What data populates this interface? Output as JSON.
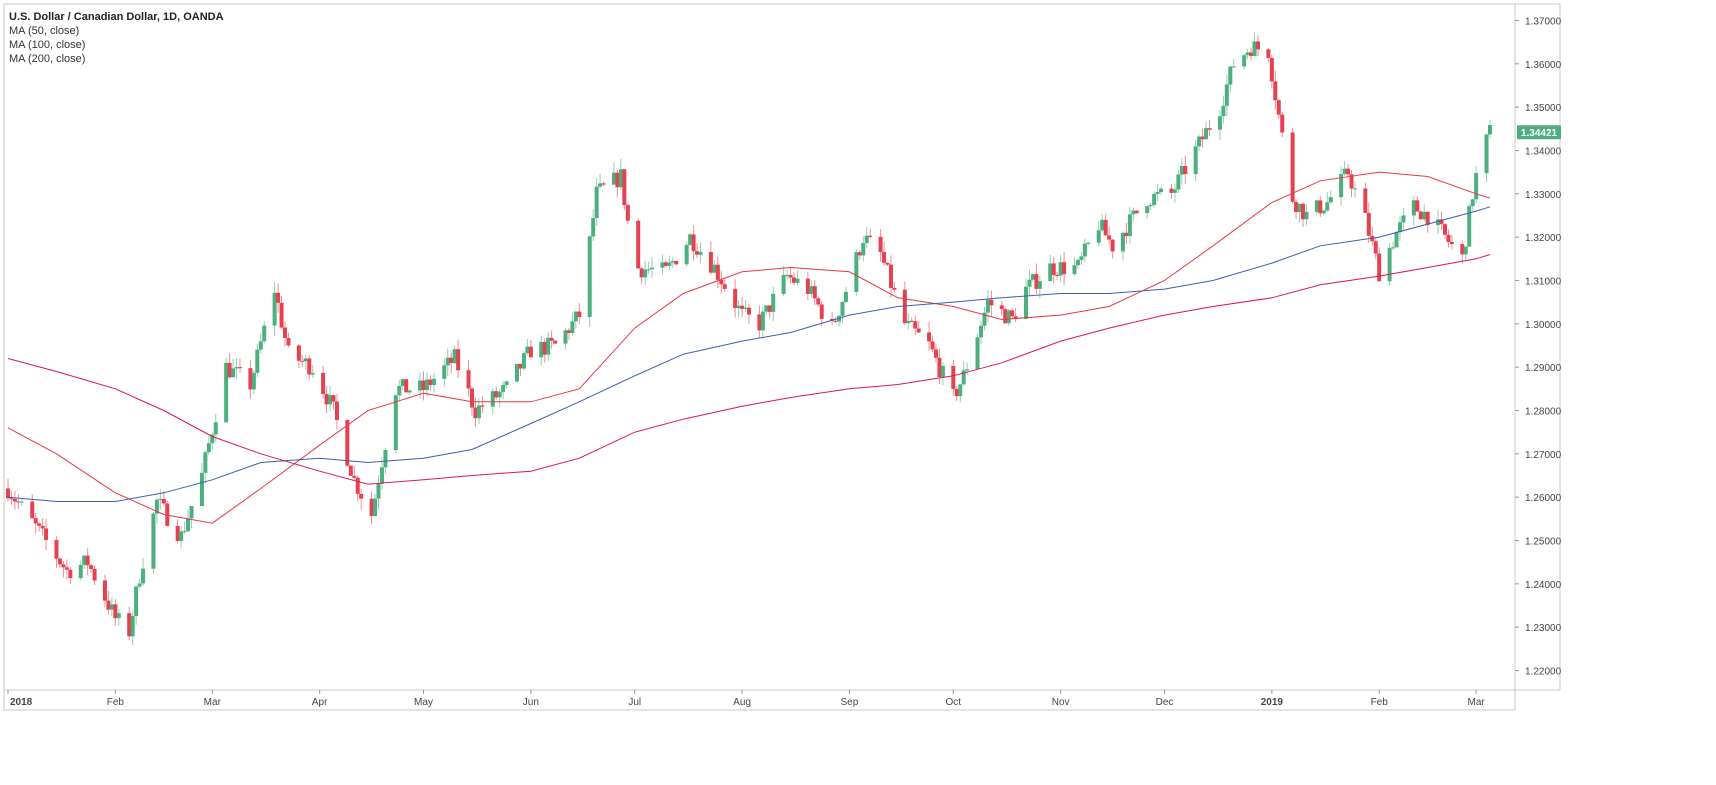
{
  "chart_data": {
    "type": "candlestick",
    "title": "U.S. Dollar / Canadian Dollar, 1D, OANDA",
    "indicators": [
      {
        "name": "MA (50, close)",
        "color": "#e53947"
      },
      {
        "name": "MA (100, close)",
        "color": "#3d5fae"
      },
      {
        "name": "MA (200, close)",
        "color": "#e0164a"
      }
    ],
    "colors": {
      "up": "#4caf7d",
      "down": "#e5414f",
      "last_price_bg": "#4caf7d"
    },
    "x_ticks": [
      "2018",
      "Feb",
      "Mar",
      "Apr",
      "May",
      "Jun",
      "Jul",
      "Aug",
      "Sep",
      "Oct",
      "Nov",
      "Dec",
      "2019",
      "Feb",
      "Mar"
    ],
    "x_tick_bold": [
      true,
      false,
      false,
      false,
      false,
      false,
      false,
      false,
      false,
      false,
      false,
      false,
      true,
      false,
      false
    ],
    "y_ticks": [
      "1.22000",
      "1.23000",
      "1.24000",
      "1.25000",
      "1.26000",
      "1.27000",
      "1.28000",
      "1.29000",
      "1.30000",
      "1.31000",
      "1.32000",
      "1.33000",
      "1.34000",
      "1.35000",
      "1.36000",
      "1.37000"
    ],
    "ylim": [
      1.2155,
      1.3738
    ],
    "last_price": "1.34421",
    "date_range": [
      "2018-01-01",
      "2019-03-05"
    ],
    "close_path": [
      [
        "2018-01-01",
        1.262
      ],
      [
        "2018-01-10",
        1.252
      ],
      [
        "2018-01-18",
        1.243
      ],
      [
        "2018-01-24",
        1.245
      ],
      [
        "2018-02-01",
        1.232
      ],
      [
        "2018-02-05",
        1.229
      ],
      [
        "2018-02-08",
        1.242
      ],
      [
        "2018-02-13",
        1.259
      ],
      [
        "2018-02-20",
        1.251
      ],
      [
        "2018-02-26",
        1.265
      ],
      [
        "2018-03-05",
        1.29
      ],
      [
        "2018-03-12",
        1.286
      ],
      [
        "2018-03-19",
        1.308
      ],
      [
        "2018-03-23",
        1.293
      ],
      [
        "2018-03-30",
        1.29
      ],
      [
        "2018-04-05",
        1.28
      ],
      [
        "2018-04-11",
        1.264
      ],
      [
        "2018-04-16",
        1.256
      ],
      [
        "2018-04-23",
        1.285
      ],
      [
        "2018-05-01",
        1.285
      ],
      [
        "2018-05-10",
        1.292
      ],
      [
        "2018-05-16",
        1.28
      ],
      [
        "2018-05-25",
        1.285
      ],
      [
        "2018-06-01",
        1.294
      ],
      [
        "2018-06-08",
        1.295
      ],
      [
        "2018-06-15",
        1.302
      ],
      [
        "2018-06-20",
        1.33
      ],
      [
        "2018-06-27",
        1.334
      ],
      [
        "2018-07-01",
        1.313
      ],
      [
        "2018-07-10",
        1.312
      ],
      [
        "2018-07-17",
        1.32
      ],
      [
        "2018-07-24",
        1.313
      ],
      [
        "2018-08-01",
        1.302
      ],
      [
        "2018-08-06",
        1.3
      ],
      [
        "2018-08-14",
        1.311
      ],
      [
        "2018-08-20",
        1.308
      ],
      [
        "2018-08-27",
        1.299
      ],
      [
        "2018-09-01",
        1.31
      ],
      [
        "2018-09-05",
        1.32
      ],
      [
        "2018-09-10",
        1.316
      ],
      [
        "2018-09-17",
        1.3
      ],
      [
        "2018-09-24",
        1.295
      ],
      [
        "2018-10-01",
        1.283
      ],
      [
        "2018-10-04",
        1.288
      ],
      [
        "2018-10-11",
        1.305
      ],
      [
        "2018-10-18",
        1.301
      ],
      [
        "2018-10-22",
        1.308
      ],
      [
        "2018-10-29",
        1.313
      ],
      [
        "2018-11-06",
        1.313
      ],
      [
        "2018-11-12",
        1.323
      ],
      [
        "2018-11-16",
        1.318
      ],
      [
        "2018-11-26",
        1.329
      ],
      [
        "2018-12-03",
        1.33
      ],
      [
        "2018-12-10",
        1.34
      ],
      [
        "2018-12-17",
        1.35
      ],
      [
        "2018-12-21",
        1.36
      ],
      [
        "2018-12-26",
        1.364
      ],
      [
        "2018-12-31",
        1.363
      ],
      [
        "2019-01-03",
        1.348
      ],
      [
        "2019-01-07",
        1.329
      ],
      [
        "2019-01-11",
        1.325
      ],
      [
        "2019-01-17",
        1.328
      ],
      [
        "2019-01-23",
        1.335
      ],
      [
        "2019-01-28",
        1.324
      ],
      [
        "2019-02-01",
        1.312
      ],
      [
        "2019-02-06",
        1.321
      ],
      [
        "2019-02-11",
        1.327
      ],
      [
        "2019-02-15",
        1.325
      ],
      [
        "2019-02-20",
        1.32
      ],
      [
        "2019-02-25",
        1.315
      ],
      [
        "2019-02-28",
        1.33
      ],
      [
        "2019-03-02",
        1.338
      ],
      [
        "2019-03-05",
        1.3442
      ]
    ],
    "ma_series": [
      {
        "name": "MA (50, close)",
        "color": "#e53947",
        "points": [
          [
            "2018-01-01",
            1.276
          ],
          [
            "2018-01-15",
            1.27
          ],
          [
            "2018-02-01",
            1.261
          ],
          [
            "2018-02-15",
            1.256
          ],
          [
            "2018-03-01",
            1.254
          ],
          [
            "2018-03-15",
            1.262
          ],
          [
            "2018-04-01",
            1.272
          ],
          [
            "2018-04-15",
            1.28
          ],
          [
            "2018-05-01",
            1.284
          ],
          [
            "2018-05-15",
            1.282
          ],
          [
            "2018-06-01",
            1.282
          ],
          [
            "2018-06-15",
            1.285
          ],
          [
            "2018-07-01",
            1.299
          ],
          [
            "2018-07-15",
            1.307
          ],
          [
            "2018-08-01",
            1.312
          ],
          [
            "2018-08-15",
            1.313
          ],
          [
            "2018-09-01",
            1.312
          ],
          [
            "2018-09-15",
            1.306
          ],
          [
            "2018-10-01",
            1.304
          ],
          [
            "2018-10-15",
            1.301
          ],
          [
            "2018-11-01",
            1.302
          ],
          [
            "2018-11-15",
            1.304
          ],
          [
            "2018-12-01",
            1.31
          ],
          [
            "2018-12-15",
            1.318
          ],
          [
            "2019-01-01",
            1.328
          ],
          [
            "2019-01-15",
            1.333
          ],
          [
            "2019-02-01",
            1.335
          ],
          [
            "2019-02-15",
            1.334
          ],
          [
            "2019-03-01",
            1.33
          ],
          [
            "2019-03-05",
            1.329
          ]
        ]
      },
      {
        "name": "MA (100, close)",
        "color": "#3d5fae",
        "points": [
          [
            "2018-01-01",
            1.26
          ],
          [
            "2018-01-15",
            1.259
          ],
          [
            "2018-02-01",
            1.259
          ],
          [
            "2018-02-15",
            1.261
          ],
          [
            "2018-03-01",
            1.264
          ],
          [
            "2018-03-15",
            1.268
          ],
          [
            "2018-04-01",
            1.269
          ],
          [
            "2018-04-15",
            1.268
          ],
          [
            "2018-05-01",
            1.269
          ],
          [
            "2018-05-15",
            1.271
          ],
          [
            "2018-06-01",
            1.277
          ],
          [
            "2018-06-15",
            1.282
          ],
          [
            "2018-07-01",
            1.288
          ],
          [
            "2018-07-15",
            1.293
          ],
          [
            "2018-08-01",
            1.296
          ],
          [
            "2018-08-15",
            1.298
          ],
          [
            "2018-09-01",
            1.302
          ],
          [
            "2018-09-15",
            1.304
          ],
          [
            "2018-10-01",
            1.305
          ],
          [
            "2018-10-15",
            1.306
          ],
          [
            "2018-11-01",
            1.307
          ],
          [
            "2018-11-15",
            1.307
          ],
          [
            "2018-12-01",
            1.308
          ],
          [
            "2018-12-15",
            1.31
          ],
          [
            "2019-01-01",
            1.314
          ],
          [
            "2019-01-15",
            1.318
          ],
          [
            "2019-02-01",
            1.32
          ],
          [
            "2019-02-15",
            1.323
          ],
          [
            "2019-03-01",
            1.326
          ],
          [
            "2019-03-05",
            1.327
          ]
        ]
      },
      {
        "name": "MA (200, close)",
        "color": "#e0164a",
        "points": [
          [
            "2018-01-01",
            1.292
          ],
          [
            "2018-01-15",
            1.289
          ],
          [
            "2018-02-01",
            1.285
          ],
          [
            "2018-02-15",
            1.28
          ],
          [
            "2018-03-01",
            1.274
          ],
          [
            "2018-03-15",
            1.27
          ],
          [
            "2018-04-01",
            1.266
          ],
          [
            "2018-04-15",
            1.263
          ],
          [
            "2018-05-01",
            1.264
          ],
          [
            "2018-05-15",
            1.265
          ],
          [
            "2018-06-01",
            1.266
          ],
          [
            "2018-06-15",
            1.269
          ],
          [
            "2018-07-01",
            1.275
          ],
          [
            "2018-07-15",
            1.278
          ],
          [
            "2018-08-01",
            1.281
          ],
          [
            "2018-08-15",
            1.283
          ],
          [
            "2018-09-01",
            1.285
          ],
          [
            "2018-09-15",
            1.286
          ],
          [
            "2018-10-01",
            1.288
          ],
          [
            "2018-10-15",
            1.291
          ],
          [
            "2018-11-01",
            1.296
          ],
          [
            "2018-11-15",
            1.299
          ],
          [
            "2018-12-01",
            1.302
          ],
          [
            "2018-12-15",
            1.304
          ],
          [
            "2019-01-01",
            1.306
          ],
          [
            "2019-01-15",
            1.309
          ],
          [
            "2019-02-01",
            1.311
          ],
          [
            "2019-02-15",
            1.313
          ],
          [
            "2019-03-01",
            1.315
          ],
          [
            "2019-03-05",
            1.316
          ]
        ]
      }
    ]
  }
}
